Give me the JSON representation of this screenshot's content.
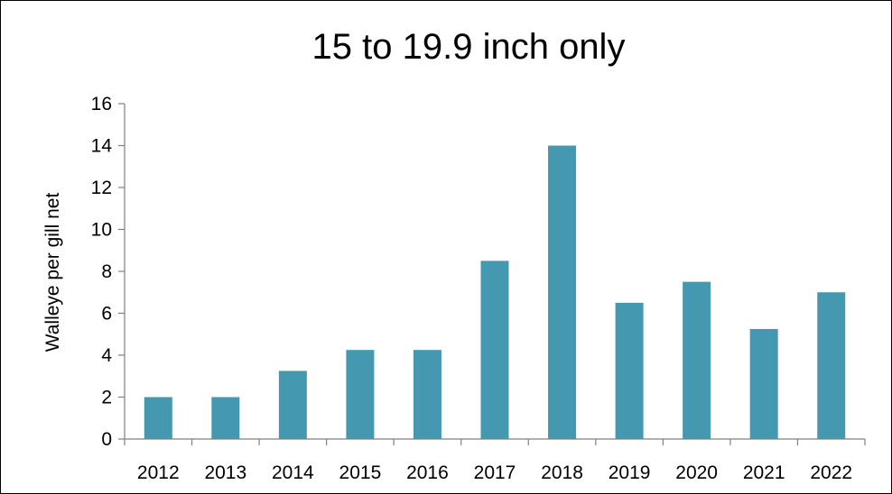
{
  "chart_data": {
    "type": "bar",
    "title": "15 to 19.9 inch only",
    "xlabel": "",
    "ylabel": "Walleye per gill net",
    "categories": [
      "2012",
      "2013",
      "2014",
      "2015",
      "2016",
      "2017",
      "2018",
      "2019",
      "2020",
      "2021",
      "2022"
    ],
    "values": [
      2,
      2,
      3.25,
      4.25,
      4.25,
      8.5,
      14,
      6.5,
      7.5,
      5.25,
      7
    ],
    "ylim": [
      0,
      16
    ],
    "yticks": [
      "0",
      "2",
      "4",
      "6",
      "8",
      "10",
      "12",
      "14",
      "16"
    ],
    "grid": false,
    "legend": "none",
    "bar_color": "#4499B1",
    "axis_color": "#808080"
  }
}
